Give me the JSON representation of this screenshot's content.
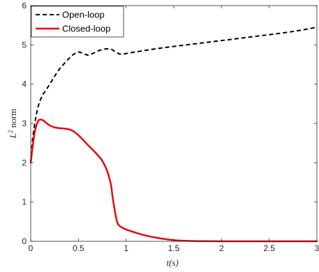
{
  "chart_data": {
    "type": "line",
    "title": "",
    "xlabel": "t(s)",
    "ylabel_base": "L",
    "ylabel_sup": "2",
    "ylabel_rest": " norm",
    "xlim": [
      0,
      3
    ],
    "ylim": [
      0,
      6
    ],
    "xticks": [
      0,
      0.5,
      1,
      1.5,
      2,
      2.5,
      3
    ],
    "xtick_labels": [
      "0",
      "0.5",
      "1",
      "1.5",
      "2",
      "2.5",
      "3"
    ],
    "yticks": [
      0,
      1,
      2,
      3,
      4,
      5,
      6
    ],
    "ytick_labels": [
      "0",
      "1",
      "2",
      "3",
      "4",
      "5",
      "6"
    ],
    "grid": false,
    "legend_position": "top-left",
    "series": [
      {
        "name": "Open-loop",
        "color": "#000000",
        "style": "dashed",
        "x": [
          0,
          0.02,
          0.05,
          0.08,
          0.12,
          0.16,
          0.2,
          0.25,
          0.3,
          0.35,
          0.4,
          0.45,
          0.5,
          0.55,
          0.6,
          0.65,
          0.7,
          0.75,
          0.8,
          0.85,
          0.9,
          0.95,
          1.0,
          1.2,
          1.4,
          1.6,
          1.8,
          2.0,
          2.2,
          2.4,
          2.6,
          2.8,
          3.0
        ],
        "y": [
          2.0,
          2.6,
          3.1,
          3.45,
          3.7,
          3.85,
          4.0,
          4.2,
          4.38,
          4.52,
          4.65,
          4.76,
          4.82,
          4.78,
          4.74,
          4.78,
          4.84,
          4.88,
          4.9,
          4.88,
          4.8,
          4.76,
          4.78,
          4.86,
          4.93,
          4.99,
          5.05,
          5.11,
          5.17,
          5.23,
          5.29,
          5.36,
          5.45
        ]
      },
      {
        "name": "Closed-loop",
        "color": "#e8070b",
        "style": "solid",
        "x": [
          0,
          0.02,
          0.04,
          0.06,
          0.08,
          0.1,
          0.13,
          0.16,
          0.2,
          0.25,
          0.3,
          0.35,
          0.4,
          0.45,
          0.5,
          0.55,
          0.6,
          0.65,
          0.7,
          0.75,
          0.8,
          0.84,
          0.86,
          0.88,
          0.9,
          0.92,
          0.95,
          1.0,
          1.1,
          1.2,
          1.3,
          1.4,
          1.5,
          1.6,
          1.7,
          1.8,
          2.0,
          2.5,
          3.0
        ],
        "y": [
          2.0,
          2.4,
          2.75,
          2.95,
          3.07,
          3.1,
          3.08,
          3.02,
          2.95,
          2.9,
          2.88,
          2.87,
          2.85,
          2.8,
          2.7,
          2.58,
          2.45,
          2.33,
          2.2,
          2.05,
          1.8,
          1.45,
          1.1,
          0.8,
          0.55,
          0.42,
          0.36,
          0.3,
          0.22,
          0.15,
          0.1,
          0.06,
          0.03,
          0.015,
          0.008,
          0.004,
          0.001,
          0.0,
          0.0
        ]
      }
    ]
  }
}
